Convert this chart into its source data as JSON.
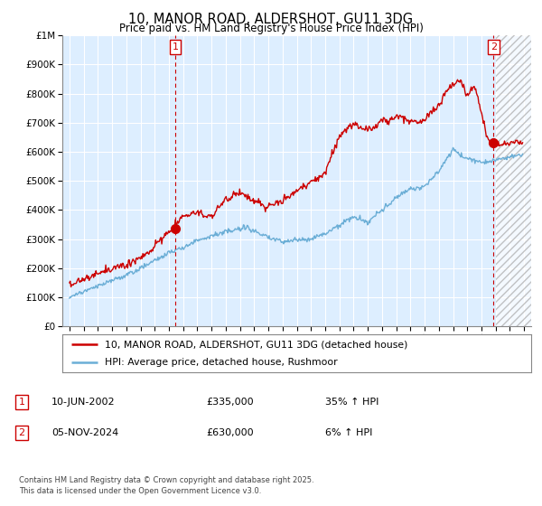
{
  "title": "10, MANOR ROAD, ALDERSHOT, GU11 3DG",
  "subtitle": "Price paid vs. HM Land Registry's House Price Index (HPI)",
  "legend_line1": "10, MANOR ROAD, ALDERSHOT, GU11 3DG (detached house)",
  "legend_line2": "HPI: Average price, detached house, Rushmoor",
  "annotation1_label": "1",
  "annotation1_date": "10-JUN-2002",
  "annotation1_price": "£335,000",
  "annotation1_hpi": "35% ↑ HPI",
  "annotation2_label": "2",
  "annotation2_date": "05-NOV-2024",
  "annotation2_price": "£630,000",
  "annotation2_hpi": "6% ↑ HPI",
  "footer": "Contains HM Land Registry data © Crown copyright and database right 2025.\nThis data is licensed under the Open Government Licence v3.0.",
  "hpi_color": "#6baed6",
  "price_color": "#cc0000",
  "vline_color": "#cc0000",
  "dot_color": "#cc0000",
  "background_color": "#ffffff",
  "chart_bg_color": "#ddeeff",
  "grid_color": "#ffffff",
  "ylim_min": 0,
  "ylim_max": 1000000,
  "xlim_min": 1994.5,
  "xlim_max": 2027.5,
  "x_ticks": [
    1995,
    1996,
    1997,
    1998,
    1999,
    2000,
    2001,
    2002,
    2003,
    2004,
    2005,
    2006,
    2007,
    2008,
    2009,
    2010,
    2011,
    2012,
    2013,
    2014,
    2015,
    2016,
    2017,
    2018,
    2019,
    2020,
    2021,
    2022,
    2023,
    2024,
    2025,
    2026,
    2027
  ],
  "y_ticks": [
    0,
    100000,
    200000,
    300000,
    400000,
    500000,
    600000,
    700000,
    800000,
    900000,
    1000000
  ],
  "sale1_x": 2002.44,
  "sale1_y": 335000,
  "sale2_x": 2024.85,
  "sale2_y": 630000,
  "hatch_start": 2025.0
}
